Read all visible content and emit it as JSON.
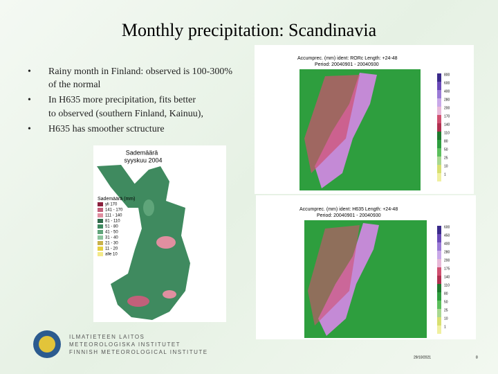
{
  "title": "Monthly precipitation: Scandinavia",
  "bullets": [
    "Rainy month in Finland: observed is 100-300% of the normal",
    "In H635 more precipitation, fits better to observed (southern Finland, Kainuu),",
    "H635 has smoother sctructure"
  ],
  "finland_map": {
    "title_line1": "Sademäärä",
    "title_line2": "syyskuu 2004",
    "legend_title": "Sademäärä (mm)",
    "legend": [
      {
        "label": "yli 170",
        "color": "#8a1f3c"
      },
      {
        "label": "141 - 170",
        "color": "#c2607a"
      },
      {
        "label": "111 - 140",
        "color": "#e08fa0"
      },
      {
        "label": "81 - 110",
        "color": "#2f6b4a"
      },
      {
        "label": "51 - 80",
        "color": "#3f8a5f"
      },
      {
        "label": "41 - 50",
        "color": "#5fa57a"
      },
      {
        "label": "31 - 40",
        "color": "#8cc49c"
      },
      {
        "label": "21 - 30",
        "color": "#c9b24a"
      },
      {
        "label": "11 - 20",
        "color": "#e6cf3f"
      },
      {
        "label": "alle 10",
        "color": "#f3e98a"
      }
    ]
  },
  "model_panels": [
    {
      "header": "Accumprec. (mm) ident: RORc Length: +24-48",
      "period": "Period: 20040901 - 20040930",
      "scale": [
        "800",
        "600",
        "400",
        "280",
        "200",
        "170",
        "140",
        "110",
        "80",
        "50",
        "25",
        "10",
        "1"
      ]
    },
    {
      "header": "Accumprec. (mm) ident: H635 Length: +24-48",
      "period": "Period: 20040901 - 20040930",
      "scale": [
        "600",
        "450",
        "400",
        "280",
        "200",
        "175",
        "140",
        "110",
        "80",
        "50",
        "25",
        "10",
        "1"
      ]
    }
  ],
  "logo": [
    "ILMATIETEEN LAITOS",
    "METEOROLOGISKA INSTITUTET",
    "FINNISH METEOROLOGICAL INSTITUTE"
  ],
  "footer": {
    "date": "29/10/2021",
    "page": "8"
  }
}
